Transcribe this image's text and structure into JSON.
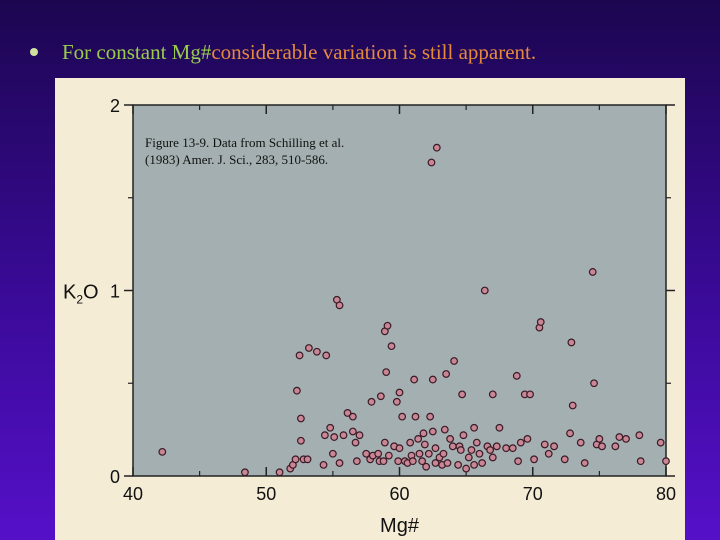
{
  "slide": {
    "bullet_text_a": "For constant Mg#",
    "bullet_text_b": " considerable variation is still apparent."
  },
  "figure": {
    "caption": "Figure 13-9. Data from Schilling et al.\n(1983) Amer. J. Sci., 283, 510-586."
  },
  "colors": {
    "plot_background": "#a3afb0",
    "point_fill": "#c98694",
    "point_stroke": "#3a1a26"
  },
  "chart_data": {
    "type": "scatter",
    "xlabel": "Mg#",
    "ylabel_base": "K",
    "ylabel_sub": "2",
    "ylabel_tail": "O",
    "xlim": [
      40,
      80
    ],
    "ylim": [
      0,
      2
    ],
    "x_ticks": [
      40,
      50,
      60,
      70,
      80
    ],
    "y_ticks": [
      0,
      1,
      2
    ],
    "minor_x": [
      45,
      55,
      65,
      75
    ],
    "minor_y": [
      0.5,
      1.5
    ],
    "points": [
      [
        42.2,
        0.13
      ],
      [
        48.4,
        0.02
      ],
      [
        51.0,
        0.02
      ],
      [
        51.8,
        0.04
      ],
      [
        52.0,
        0.06
      ],
      [
        52.2,
        0.09
      ],
      [
        52.3,
        0.46
      ],
      [
        52.5,
        0.65
      ],
      [
        52.6,
        0.31
      ],
      [
        52.6,
        0.19
      ],
      [
        52.8,
        0.09
      ],
      [
        53.1,
        0.09
      ],
      [
        53.2,
        0.69
      ],
      [
        53.8,
        0.67
      ],
      [
        54.3,
        0.06
      ],
      [
        54.4,
        0.22
      ],
      [
        54.5,
        0.65
      ],
      [
        54.8,
        0.26
      ],
      [
        55.0,
        0.12
      ],
      [
        55.1,
        0.21
      ],
      [
        55.3,
        0.95
      ],
      [
        55.5,
        0.92
      ],
      [
        55.5,
        0.07
      ],
      [
        55.8,
        0.22
      ],
      [
        56.1,
        0.34
      ],
      [
        56.5,
        0.32
      ],
      [
        56.5,
        0.24
      ],
      [
        56.7,
        0.18
      ],
      [
        56.8,
        0.08
      ],
      [
        57.0,
        0.22
      ],
      [
        57.5,
        0.12
      ],
      [
        57.8,
        0.09
      ],
      [
        57.9,
        0.4
      ],
      [
        58.0,
        0.11
      ],
      [
        58.4,
        0.12
      ],
      [
        58.5,
        0.08
      ],
      [
        58.6,
        0.43
      ],
      [
        58.8,
        0.08
      ],
      [
        58.9,
        0.18
      ],
      [
        58.9,
        0.78
      ],
      [
        59.0,
        0.56
      ],
      [
        59.1,
        0.81
      ],
      [
        59.2,
        0.11
      ],
      [
        59.4,
        0.7
      ],
      [
        59.6,
        0.16
      ],
      [
        59.8,
        0.4
      ],
      [
        59.9,
        0.08
      ],
      [
        60.0,
        0.15
      ],
      [
        60.0,
        0.45
      ],
      [
        60.2,
        0.32
      ],
      [
        60.4,
        0.08
      ],
      [
        60.6,
        0.07
      ],
      [
        60.8,
        0.18
      ],
      [
        60.9,
        0.11
      ],
      [
        61.0,
        0.08
      ],
      [
        61.1,
        0.52
      ],
      [
        61.2,
        0.32
      ],
      [
        61.4,
        0.2
      ],
      [
        61.5,
        0.12
      ],
      [
        61.7,
        0.08
      ],
      [
        61.8,
        0.23
      ],
      [
        61.9,
        0.17
      ],
      [
        62.0,
        0.05
      ],
      [
        62.2,
        0.12
      ],
      [
        62.3,
        0.32
      ],
      [
        62.4,
        1.69
      ],
      [
        62.5,
        0.52
      ],
      [
        62.5,
        0.24
      ],
      [
        62.7,
        0.07
      ],
      [
        62.7,
        0.15
      ],
      [
        62.8,
        1.77
      ],
      [
        63.0,
        0.1
      ],
      [
        63.2,
        0.06
      ],
      [
        63.3,
        0.12
      ],
      [
        63.4,
        0.25
      ],
      [
        63.5,
        0.55
      ],
      [
        63.6,
        0.07
      ],
      [
        63.8,
        0.2
      ],
      [
        64.0,
        0.16
      ],
      [
        64.1,
        0.62
      ],
      [
        64.4,
        0.06
      ],
      [
        64.5,
        0.16
      ],
      [
        64.6,
        0.14
      ],
      [
        64.7,
        0.44
      ],
      [
        64.8,
        0.22
      ],
      [
        65.0,
        0.04
      ],
      [
        65.2,
        0.1
      ],
      [
        65.4,
        0.14
      ],
      [
        65.6,
        0.26
      ],
      [
        65.6,
        0.06
      ],
      [
        65.8,
        0.18
      ],
      [
        66.0,
        0.12
      ],
      [
        66.2,
        0.07
      ],
      [
        66.4,
        1.0
      ],
      [
        66.6,
        0.16
      ],
      [
        66.8,
        0.14
      ],
      [
        67.0,
        0.1
      ],
      [
        67.0,
        0.44
      ],
      [
        67.3,
        0.16
      ],
      [
        67.5,
        0.26
      ],
      [
        68.0,
        0.15
      ],
      [
        68.5,
        0.15
      ],
      [
        68.8,
        0.54
      ],
      [
        68.9,
        0.08
      ],
      [
        69.1,
        0.18
      ],
      [
        69.4,
        0.44
      ],
      [
        69.6,
        0.2
      ],
      [
        69.8,
        0.44
      ],
      [
        70.1,
        0.09
      ],
      [
        70.5,
        0.8
      ],
      [
        70.6,
        0.83
      ],
      [
        70.9,
        0.17
      ],
      [
        71.2,
        0.12
      ],
      [
        71.6,
        0.16
      ],
      [
        72.4,
        0.09
      ],
      [
        72.8,
        0.23
      ],
      [
        72.9,
        0.72
      ],
      [
        73.0,
        0.38
      ],
      [
        73.6,
        0.18
      ],
      [
        73.9,
        0.07
      ],
      [
        74.5,
        1.1
      ],
      [
        74.6,
        0.5
      ],
      [
        74.8,
        0.17
      ],
      [
        75.0,
        0.2
      ],
      [
        75.2,
        0.16
      ],
      [
        76.2,
        0.16
      ],
      [
        76.5,
        0.21
      ],
      [
        77.0,
        0.2
      ],
      [
        78.0,
        0.22
      ],
      [
        78.1,
        0.08
      ],
      [
        79.6,
        0.18
      ],
      [
        80.0,
        0.08
      ]
    ]
  }
}
